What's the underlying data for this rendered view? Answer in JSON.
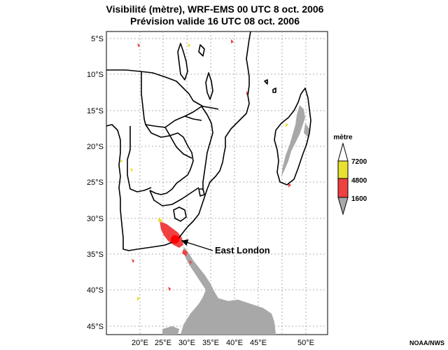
{
  "title": {
    "line1": "Visibilité (mètre), WRF-EMS 00 UTC 8 oct. 2006",
    "line2": "Prévision valide 16 UTC 08 oct. 2006"
  },
  "map": {
    "latitude_labels": [
      "5°S",
      "10°S",
      "15°S",
      "20°S",
      "25°S",
      "30°S",
      "35°S",
      "40°S",
      "45°S"
    ],
    "longitude_labels": [
      "20°E",
      "25°E",
      "30°E",
      "35°E",
      "40°E",
      "45°E",
      "50°E"
    ],
    "grid": "dotted",
    "annotation": {
      "label": "East London",
      "marker_color": "#ff0000"
    }
  },
  "legend": {
    "title": "mètre",
    "levels": [
      {
        "label": "7200",
        "color": "#e8e030"
      },
      {
        "label": "4800",
        "color": "#f04040"
      },
      {
        "label": "1600",
        "color": "#a8a8a8"
      }
    ]
  },
  "colors": {
    "low_visibility": "#a8a8a8",
    "mid_visibility": "#f04040",
    "high_visibility": "#e8e030",
    "land_outline": "#000000"
  },
  "credit": "NOAA/NWS"
}
